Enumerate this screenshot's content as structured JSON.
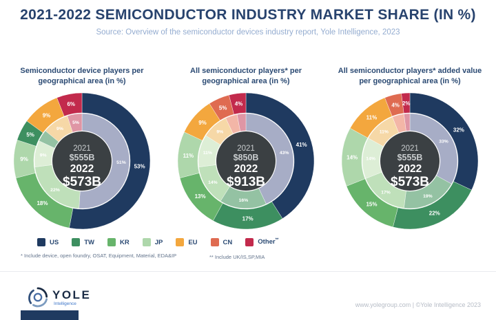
{
  "header": {
    "title": "2021-2022 SEMICONDUCTOR INDUSTRY MARKET SHARE (IN %)",
    "subtitle": "Source: Overview of the semiconductor devices industry report, Yole Intelligence, 2023"
  },
  "legend": {
    "items": [
      {
        "key": "us",
        "label": "US",
        "color": "#1f3a60"
      },
      {
        "key": "tw",
        "label": "TW",
        "color": "#3d8f60"
      },
      {
        "key": "kr",
        "label": "KR",
        "color": "#67b46b"
      },
      {
        "key": "jp",
        "label": "JP",
        "color": "#aed7ab"
      },
      {
        "key": "eu",
        "label": "EU",
        "color": "#f3a73e"
      },
      {
        "key": "cn",
        "label": "CN",
        "color": "#df6b51"
      },
      {
        "key": "other",
        "label": "Other",
        "sup": "**",
        "color": "#c22a4c"
      }
    ]
  },
  "footnotes": {
    "first": "* Include device, open foundry, OSAT, Equipment, Material, EDA&IP",
    "second": "** Include UK/IS,SP,MIA"
  },
  "footer": {
    "logo_text": "YOLE",
    "logo_subtext": "Intelligence",
    "credit": "www.yolegroup.com | ©Yole Intelligence 2023"
  },
  "chart_data": [
    {
      "type": "pie",
      "subtype": "double-ring donut (outer = 2022, inner = 2021)",
      "title": "Semiconductor device players per geographical area (in %)",
      "center_label": [
        "2021",
        "$555B",
        "2022",
        "$573B"
      ],
      "center_color": "#3b4043",
      "rings": [
        {
          "name": "2022 (outer ring)",
          "segments": [
            {
              "label": "US",
              "value": 53,
              "color": "#1f3a60"
            },
            {
              "label": "KR",
              "value": 18,
              "color": "#67b46b"
            },
            {
              "label": "JP",
              "value": 9,
              "color": "#aed7ab"
            },
            {
              "label": "TW",
              "value": 5,
              "color": "#3d8f60"
            },
            {
              "label": "EU",
              "value": 9,
              "color": "#f3a73e"
            },
            {
              "label": "Other",
              "value": 6,
              "color": "#c22a4c"
            }
          ]
        },
        {
          "name": "2021 (inner ring)",
          "segments": [
            {
              "label": "US",
              "value": 51,
              "color": "#a7adc6"
            },
            {
              "label": "KR",
              "value": 22,
              "color": "#bfe0ba"
            },
            {
              "label": "JP",
              "value": 9,
              "color": "#ddeed6"
            },
            {
              "label": "TW",
              "value": 4,
              "color": "#94c2a3"
            },
            {
              "label": "EU",
              "value": 9,
              "color": "#f6d8a7"
            },
            {
              "label": "Other",
              "value": 5,
              "color": "#df96a5"
            }
          ]
        }
      ]
    },
    {
      "type": "pie",
      "subtype": "double-ring donut (outer = 2022, inner = 2021)",
      "title": "All semiconductor players* per geographical area (in %)",
      "center_label": [
        "2021",
        "$850B",
        "2022",
        "$913B"
      ],
      "center_color": "#3b4043",
      "rings": [
        {
          "name": "2022 (outer ring)",
          "segments": [
            {
              "label": "US",
              "value": 41,
              "color": "#1f3a60"
            },
            {
              "label": "TW",
              "value": 17,
              "color": "#3d8f60"
            },
            {
              "label": "KR",
              "value": 13,
              "color": "#67b46b"
            },
            {
              "label": "JP",
              "value": 11,
              "color": "#aed7ab"
            },
            {
              "label": "EU",
              "value": 9,
              "color": "#f3a73e"
            },
            {
              "label": "CN",
              "value": 5,
              "color": "#df6b51"
            },
            {
              "label": "Other",
              "value": 4,
              "color": "#c22a4c"
            }
          ]
        },
        {
          "name": "2021 (inner ring)",
          "segments": [
            {
              "label": "US",
              "value": 43,
              "color": "#a7adc6"
            },
            {
              "label": "TW",
              "value": 16,
              "color": "#94c2a3"
            },
            {
              "label": "KR",
              "value": 14,
              "color": "#bfe0ba"
            },
            {
              "label": "JP",
              "value": 11,
              "color": "#ddeed6"
            },
            {
              "label": "EU",
              "value": 9,
              "color": "#f6d8a7"
            },
            {
              "label": "CN",
              "value": 4,
              "color": "#f3b6a7"
            },
            {
              "label": "Other",
              "value": 3,
              "color": "#df96a5"
            }
          ]
        }
      ]
    },
    {
      "type": "pie",
      "subtype": "double-ring donut (outer = 2022, inner = 2021)",
      "title": "All semiconductor players* added value per geographical area (in %)",
      "center_label": [
        "2021",
        "$555B",
        "2022",
        "$573B"
      ],
      "center_color": "#3b4043",
      "rings": [
        {
          "name": "2022 (outer ring)",
          "segments": [
            {
              "label": "US",
              "value": 32,
              "color": "#1f3a60"
            },
            {
              "label": "TW",
              "value": 22,
              "color": "#3d8f60"
            },
            {
              "label": "KR",
              "value": 15,
              "color": "#67b46b"
            },
            {
              "label": "JP",
              "value": 14,
              "color": "#aed7ab"
            },
            {
              "label": "EU",
              "value": 11,
              "color": "#f3a73e"
            },
            {
              "label": "CN",
              "value": 4,
              "color": "#df6b51"
            },
            {
              "label": "Other",
              "value": 2,
              "color": "#c22a4c"
            }
          ]
        },
        {
          "name": "2021 (inner ring)",
          "segments": [
            {
              "label": "US",
              "value": 33,
              "color": "#a7adc6"
            },
            {
              "label": "TW",
              "value": 19,
              "color": "#94c2a3"
            },
            {
              "label": "KR",
              "value": 17,
              "color": "#bfe0ba"
            },
            {
              "label": "JP",
              "value": 14,
              "color": "#ddeed6"
            },
            {
              "label": "EU",
              "value": 11,
              "color": "#f6d8a7"
            },
            {
              "label": "CN",
              "value": 4,
              "color": "#f3b6a7"
            },
            {
              "label": "Other",
              "value": 2,
              "color": "#df96a5"
            }
          ]
        }
      ]
    }
  ]
}
